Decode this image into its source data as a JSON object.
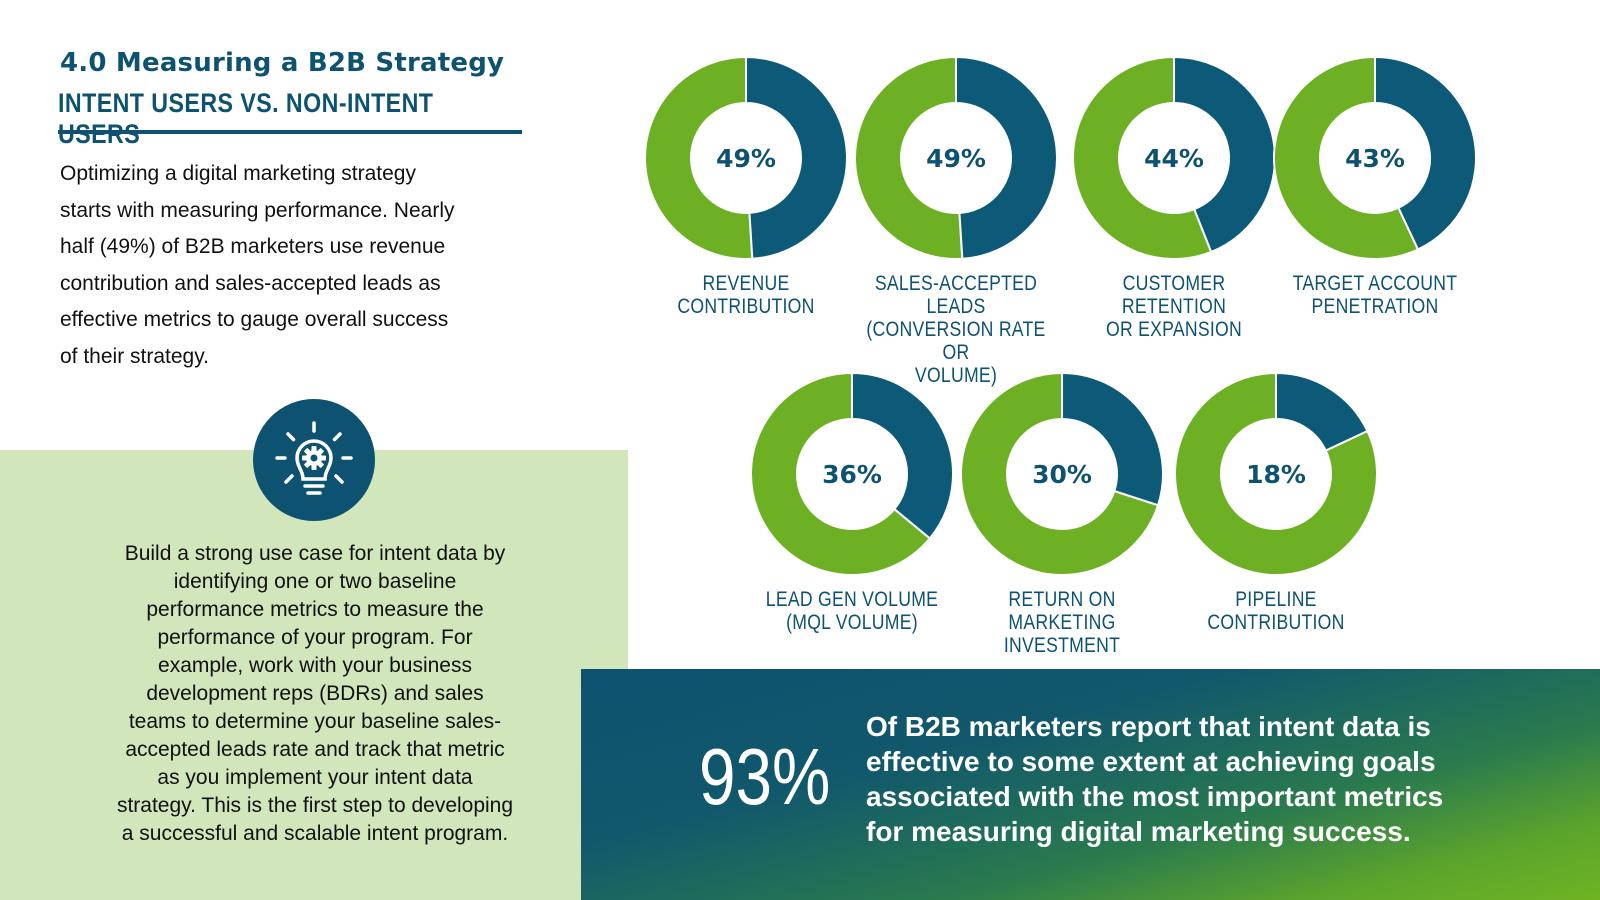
{
  "header": {
    "title": "4.0 Measuring a B2B Strategy",
    "subtitle": "INTENT USERS VS. NON-INTENT USERS"
  },
  "intro_lines": [
    "Optimizing a digital marketing strategy",
    "starts with measuring performance. Nearly",
    "half (49%) of B2B marketers use revenue",
    "contribution and sales-accepted leads as",
    "effective metrics to gauge overall success",
    "of their strategy."
  ],
  "tip": {
    "icon": "lightbulb-gear-icon",
    "lines": [
      "Build a strong use case for intent data by",
      "identifying one or two baseline",
      "performance metrics to measure the",
      "performance of your program. For",
      "example, work with your business",
      "development reps (BDRs) and sales",
      "teams to determine your baseline sales-",
      "accepted leads rate and track that metric",
      "as you implement your intent data",
      "strategy. This is the first step to developing",
      "a successful and scalable intent program."
    ]
  },
  "chart_data": {
    "type": "pie",
    "variant": "donut-grid",
    "unit": "%",
    "items": [
      {
        "label_lines": [
          "REVENUE CONTRIBUTION"
        ],
        "value": 49,
        "display": "49%"
      },
      {
        "label_lines": [
          "SALES-ACCEPTED LEADS",
          "(CONVERSION RATE OR",
          "VOLUME)"
        ],
        "value": 49,
        "display": "49%"
      },
      {
        "label_lines": [
          "CUSTOMER RETENTION",
          "OR EXPANSION"
        ],
        "value": 44,
        "display": "44%"
      },
      {
        "label_lines": [
          "TARGET ACCOUNT",
          "PENETRATION"
        ],
        "value": 43,
        "display": "43%"
      },
      {
        "label_lines": [
          "LEAD GEN VOLUME",
          "(MQL VOLUME)"
        ],
        "value": 36,
        "display": "36%"
      },
      {
        "label_lines": [
          "RETURN ON MARKETING",
          "INVESTMENT"
        ],
        "value": 30,
        "display": "30%"
      },
      {
        "label_lines": [
          "PIPELINE CONTRIBUTION"
        ],
        "value": 18,
        "display": "18%"
      }
    ],
    "colors": {
      "value": "#0d5a78",
      "remainder": "#6db023",
      "text": "#0d5270"
    }
  },
  "stat": {
    "value": "93%",
    "desc_lines": [
      "Of B2B marketers report that intent data is",
      "effective to some extent at achieving goals",
      "associated with the most important metrics",
      "for measuring digital marketing success."
    ]
  }
}
